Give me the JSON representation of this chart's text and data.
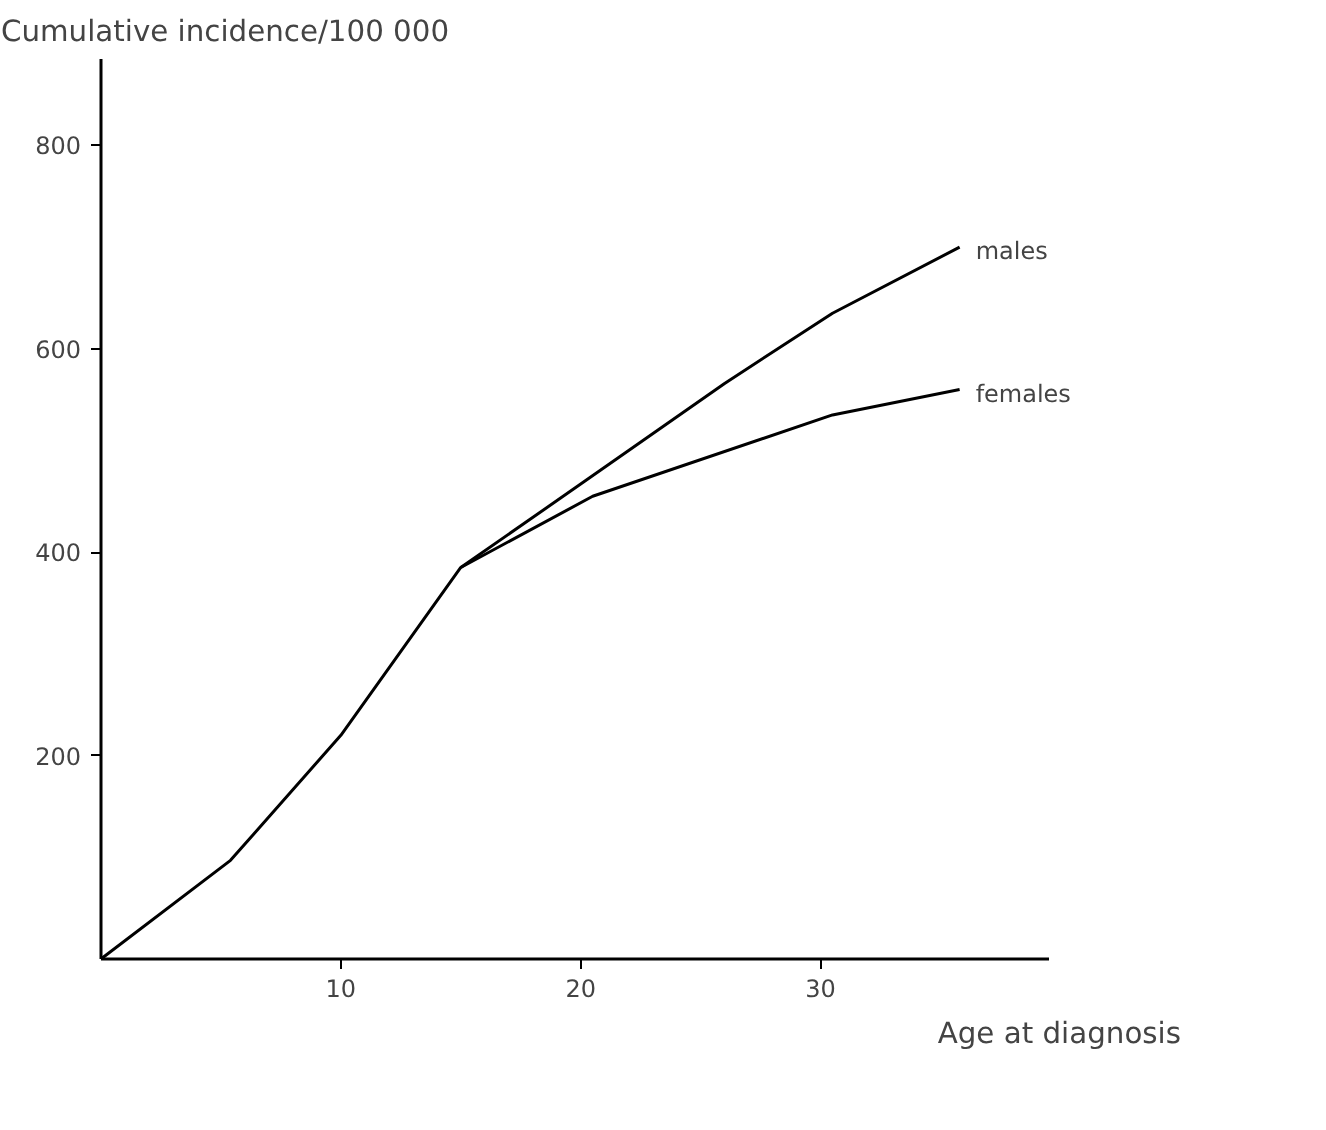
{
  "chart_data": {
    "type": "line",
    "ylabel": "Cumulative incidence/100 000",
    "xlabel": "Age at diagnosis",
    "xlim": [
      0,
      39.5
    ],
    "ylim": [
      0,
      885
    ],
    "xticks": [
      10,
      20,
      30
    ],
    "yticks": [
      200,
      400,
      600,
      800
    ],
    "grid": false,
    "marker": "none",
    "line_style": "solid",
    "series": [
      {
        "name": "males",
        "color": "#000000",
        "x": [
          0,
          5.4,
          10,
          15,
          20,
          26,
          30.5,
          35.8
        ],
        "values": [
          0,
          97,
          220,
          385,
          467,
          566,
          635,
          700
        ]
      },
      {
        "name": "females",
        "color": "#000000",
        "x": [
          15,
          20.5,
          30.5,
          35.8
        ],
        "values": [
          385,
          455,
          535,
          560
        ]
      }
    ]
  }
}
